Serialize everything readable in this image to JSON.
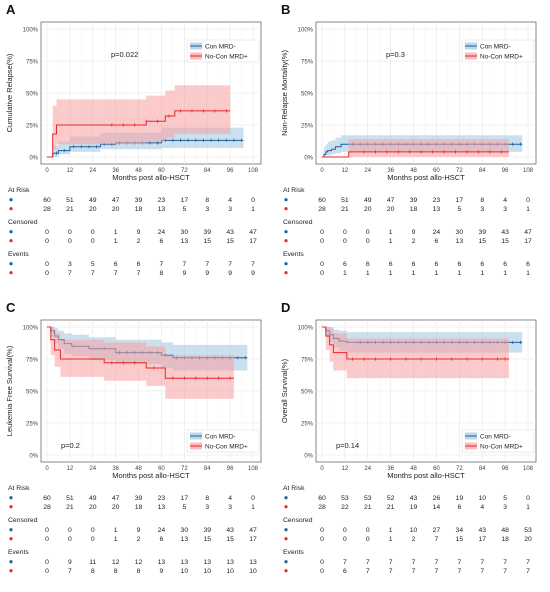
{
  "figure": {
    "x_ticks": [
      0,
      12,
      24,
      36,
      48,
      60,
      72,
      84,
      96,
      108
    ],
    "y_ticks": [
      "0%",
      "25%",
      "50%",
      "75%",
      "100%"
    ],
    "xlabel": "Months post allo-HSCT",
    "headers": {
      "risk": "At Risk",
      "censored": "Censored",
      "events": "Events"
    },
    "colors": {
      "con": "#1f5f9e",
      "nocon": "#e8282b",
      "con_band": "#9ec6e0",
      "nocon_band": "#f7a1a1"
    }
  },
  "chart_data": [
    {
      "type": "line",
      "letter": "A",
      "ylabel": "Cumulative Relapse(%)",
      "pvalue": "p=0.022",
      "legend": "top-right",
      "xlim": [
        0,
        108
      ],
      "ylim": [
        0,
        100
      ],
      "series": [
        {
          "name": "Con MRD-",
          "color": "#1f5f9e",
          "steps": [
            [
              0,
              0
            ],
            [
              3,
              3
            ],
            [
              6,
              5
            ],
            [
              12,
              8
            ],
            [
              28,
              10
            ],
            [
              36,
              11
            ],
            [
              60,
              13
            ],
            [
              103,
              13
            ]
          ],
          "lower": [
            0,
            0,
            2,
            4,
            6,
            6,
            7,
            7
          ],
          "upper": [
            0,
            9,
            12,
            16,
            19,
            19,
            23,
            23
          ],
          "censor_x": [
            5,
            9,
            14,
            18,
            22,
            26,
            30,
            34,
            38,
            42,
            46,
            50,
            54,
            58,
            62,
            66,
            70,
            74,
            78,
            82,
            86,
            90,
            94,
            98,
            102
          ]
        },
        {
          "name": "No-Con MRD+",
          "color": "#e8282b",
          "steps": [
            [
              0,
              0
            ],
            [
              3,
              18
            ],
            [
              5,
              25
            ],
            [
              32,
              25
            ],
            [
              52,
              28
            ],
            [
              62,
              32
            ],
            [
              67,
              36
            ],
            [
              96,
              36
            ]
          ],
          "lower": [
            0,
            6,
            10,
            10,
            12,
            15,
            18,
            18
          ],
          "upper": [
            0,
            40,
            45,
            45,
            48,
            52,
            56,
            56
          ],
          "censor_x": [
            34,
            40,
            46,
            52,
            58,
            64,
            70,
            76,
            82,
            88,
            94
          ]
        }
      ],
      "at_risk": [
        [
          60,
          51,
          49,
          47,
          39,
          23,
          17,
          8,
          4,
          0
        ],
        [
          28,
          21,
          20,
          20,
          18,
          13,
          5,
          3,
          3,
          1
        ]
      ],
      "censored": [
        [
          0,
          0,
          0,
          1,
          9,
          24,
          30,
          39,
          43,
          47
        ],
        [
          0,
          0,
          0,
          1,
          2,
          6,
          13,
          15,
          15,
          17
        ]
      ],
      "events": [
        [
          0,
          3,
          5,
          6,
          6,
          7,
          7,
          7,
          7,
          7
        ],
        [
          0,
          7,
          7,
          7,
          7,
          8,
          9,
          9,
          9,
          9
        ]
      ]
    },
    {
      "type": "line",
      "letter": "B",
      "ylabel": "Non-Relapse Mortality(%)",
      "pvalue": "p=0.3",
      "legend": "top-right",
      "xlim": [
        0,
        108
      ],
      "ylim": [
        0,
        100
      ],
      "series": [
        {
          "name": "Con MRD-",
          "color": "#1f5f9e",
          "steps": [
            [
              0,
              0
            ],
            [
              1,
              2
            ],
            [
              2,
              4
            ],
            [
              3,
              5
            ],
            [
              5,
              6
            ],
            [
              7,
              8
            ],
            [
              10,
              10
            ],
            [
              105,
              10
            ]
          ],
          "lower": [
            0,
            0,
            1,
            1,
            2,
            3,
            4,
            4
          ],
          "upper": [
            0,
            8,
            10,
            12,
            13,
            15,
            17,
            17
          ],
          "censor_x": [
            16,
            20,
            24,
            28,
            32,
            36,
            40,
            44,
            48,
            52,
            56,
            60,
            64,
            68,
            72,
            76,
            80,
            84,
            88,
            92,
            96,
            100,
            104
          ]
        },
        {
          "name": "No-Con MRD+",
          "color": "#e8282b",
          "steps": [
            [
              0,
              0
            ],
            [
              14,
              4
            ],
            [
              98,
              4
            ]
          ],
          "lower": [
            0,
            0,
            0
          ],
          "upper": [
            0,
            14,
            14
          ],
          "censor_x": [
            22,
            28,
            34,
            40,
            46,
            52,
            58,
            64,
            70,
            76,
            82,
            88,
            94
          ]
        }
      ],
      "at_risk": [
        [
          60,
          51,
          49,
          47,
          39,
          23,
          17,
          8,
          4,
          0
        ],
        [
          28,
          21,
          20,
          20,
          18,
          13,
          5,
          3,
          3,
          1
        ]
      ],
      "censored": [
        [
          0,
          0,
          0,
          1,
          9,
          24,
          30,
          39,
          43,
          47
        ],
        [
          0,
          0,
          0,
          1,
          2,
          6,
          13,
          15,
          15,
          17
        ]
      ],
      "events": [
        [
          0,
          6,
          6,
          6,
          6,
          6,
          6,
          6,
          6,
          6
        ],
        [
          0,
          1,
          1,
          1,
          1,
          1,
          1,
          1,
          1,
          1
        ]
      ]
    },
    {
      "type": "line",
      "letter": "C",
      "ylabel": "Leukemia Free Survival(%)",
      "pvalue": "p=0.2",
      "legend": "bottom-right",
      "xlim": [
        0,
        108
      ],
      "ylim": [
        0,
        100
      ],
      "series": [
        {
          "name": "Con MRD-",
          "color": "#1f5f9e",
          "steps": [
            [
              0,
              100
            ],
            [
              2,
              97
            ],
            [
              4,
              93
            ],
            [
              6,
              90
            ],
            [
              9,
              87
            ],
            [
              13,
              85
            ],
            [
              22,
              83
            ],
            [
              36,
              80
            ],
            [
              60,
              78
            ],
            [
              66,
              76
            ],
            [
              105,
              76
            ]
          ],
          "lower": [
            100,
            92,
            87,
            83,
            79,
            77,
            74,
            71,
            68,
            66,
            66
          ],
          "upper": [
            100,
            100,
            99,
            97,
            95,
            94,
            92,
            90,
            88,
            86,
            86
          ],
          "censor_x": [
            30,
            38,
            42,
            46,
            50,
            54,
            58,
            62,
            68,
            72,
            76,
            80,
            84,
            88,
            92,
            96,
            100,
            104
          ]
        },
        {
          "name": "No-Con MRD+",
          "color": "#e8282b",
          "steps": [
            [
              0,
              100
            ],
            [
              2,
              90
            ],
            [
              4,
              82
            ],
            [
              7,
              75
            ],
            [
              30,
              72
            ],
            [
              52,
              68
            ],
            [
              62,
              60
            ],
            [
              98,
              60
            ]
          ],
          "lower": [
            100,
            78,
            69,
            61,
            58,
            54,
            44,
            44
          ],
          "upper": [
            100,
            100,
            95,
            90,
            88,
            85,
            78,
            78
          ],
          "censor_x": [
            34,
            40,
            46,
            56,
            66,
            72,
            78,
            84,
            90,
            96
          ]
        }
      ],
      "at_risk": [
        [
          60,
          51,
          49,
          47,
          39,
          23,
          17,
          8,
          4,
          0
        ],
        [
          28,
          21,
          20,
          20,
          18,
          13,
          5,
          3,
          3,
          1
        ]
      ],
      "censored": [
        [
          0,
          0,
          0,
          1,
          9,
          24,
          30,
          39,
          43,
          47
        ],
        [
          0,
          0,
          0,
          1,
          2,
          6,
          13,
          15,
          15,
          17
        ]
      ],
      "events": [
        [
          0,
          9,
          11,
          12,
          12,
          13,
          13,
          13,
          13,
          13
        ],
        [
          0,
          7,
          8,
          8,
          8,
          9,
          10,
          10,
          10,
          10
        ]
      ]
    },
    {
      "type": "line",
      "letter": "D",
      "ylabel": "Overall Survival(%)",
      "pvalue": "p=0.14",
      "legend": "bottom-right",
      "xlim": [
        0,
        108
      ],
      "ylim": [
        0,
        100
      ],
      "series": [
        {
          "name": "Con MRD-",
          "color": "#1f5f9e",
          "steps": [
            [
              0,
              100
            ],
            [
              2,
              97
            ],
            [
              4,
              94
            ],
            [
              6,
              91
            ],
            [
              9,
              89
            ],
            [
              13,
              88
            ],
            [
              105,
              88
            ]
          ],
          "lower": [
            100,
            92,
            88,
            84,
            81,
            80,
            80
          ],
          "upper": [
            100,
            100,
            100,
            98,
            97,
            96,
            96
          ],
          "censor_x": [
            20,
            24,
            28,
            32,
            36,
            40,
            44,
            48,
            52,
            56,
            60,
            64,
            68,
            72,
            76,
            80,
            84,
            88,
            92,
            96,
            100,
            104
          ]
        },
        {
          "name": "No-Con MRD+",
          "color": "#e8282b",
          "steps": [
            [
              0,
              100
            ],
            [
              2,
              93
            ],
            [
              4,
              86
            ],
            [
              6,
              80
            ],
            [
              13,
              75
            ],
            [
              98,
              75
            ]
          ],
          "lower": [
            100,
            82,
            73,
            66,
            60,
            60
          ],
          "upper": [
            100,
            100,
            99,
            95,
            91,
            91
          ],
          "censor_x": [
            16,
            22,
            28,
            36,
            44,
            52,
            60,
            68,
            76,
            84,
            92,
            96
          ]
        }
      ],
      "at_risk": [
        [
          60,
          53,
          53,
          52,
          43,
          26,
          19,
          10,
          5,
          0
        ],
        [
          28,
          22,
          21,
          21,
          19,
          14,
          6,
          4,
          3,
          1
        ]
      ],
      "censored": [
        [
          0,
          0,
          0,
          1,
          10,
          27,
          34,
          43,
          48,
          53
        ],
        [
          0,
          0,
          0,
          1,
          2,
          7,
          15,
          17,
          18,
          20
        ]
      ],
      "events": [
        [
          0,
          7,
          7,
          7,
          7,
          7,
          7,
          7,
          7,
          7
        ],
        [
          0,
          6,
          7,
          7,
          7,
          7,
          7,
          7,
          7,
          7
        ]
      ]
    }
  ]
}
